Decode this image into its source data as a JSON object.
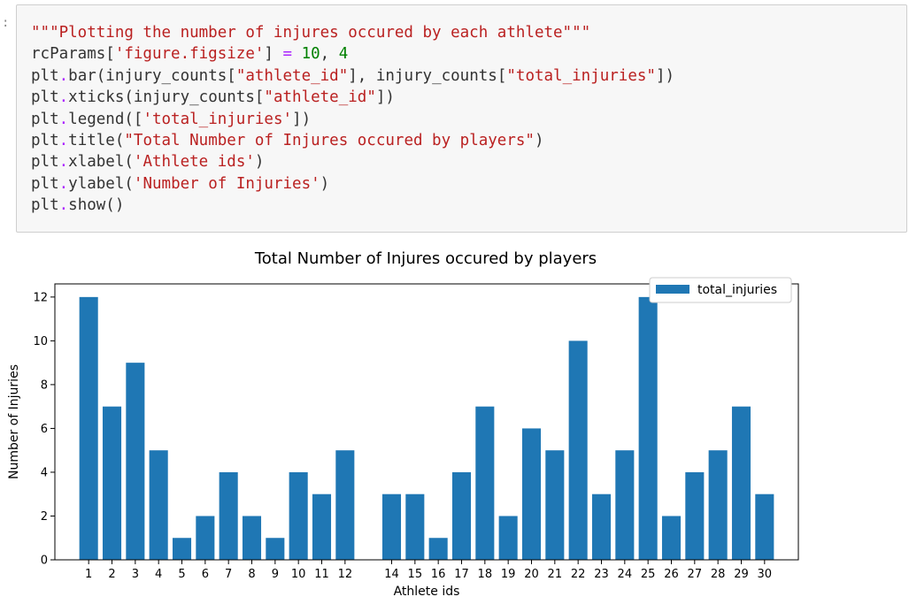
{
  "cell": {
    "prompt": ":",
    "code_lines": [
      [
        {
          "t": "\"\"\"Plotting the number of injures occured by each athlete\"\"\"",
          "c": "str"
        }
      ],
      [
        {
          "t": "rcParams[",
          "c": "default"
        },
        {
          "t": "'figure.figsize'",
          "c": "str"
        },
        {
          "t": "] ",
          "c": "default"
        },
        {
          "t": "=",
          "c": "op"
        },
        {
          "t": " ",
          "c": "default"
        },
        {
          "t": "10",
          "c": "num"
        },
        {
          "t": ", ",
          "c": "default"
        },
        {
          "t": "4",
          "c": "num"
        }
      ],
      [
        {
          "t": "plt",
          "c": "default"
        },
        {
          "t": ".",
          "c": "op"
        },
        {
          "t": "bar(injury_counts[",
          "c": "default"
        },
        {
          "t": "\"athlete_id\"",
          "c": "str"
        },
        {
          "t": "], injury_counts[",
          "c": "default"
        },
        {
          "t": "\"total_injuries\"",
          "c": "str"
        },
        {
          "t": "])",
          "c": "default"
        }
      ],
      [
        {
          "t": "plt",
          "c": "default"
        },
        {
          "t": ".",
          "c": "op"
        },
        {
          "t": "xticks(injury_counts[",
          "c": "default"
        },
        {
          "t": "\"athlete_id\"",
          "c": "str"
        },
        {
          "t": "])",
          "c": "default"
        }
      ],
      [
        {
          "t": "plt",
          "c": "default"
        },
        {
          "t": ".",
          "c": "op"
        },
        {
          "t": "legend([",
          "c": "default"
        },
        {
          "t": "'total_injuries'",
          "c": "str"
        },
        {
          "t": "])",
          "c": "default"
        }
      ],
      [
        {
          "t": "plt",
          "c": "default"
        },
        {
          "t": ".",
          "c": "op"
        },
        {
          "t": "title(",
          "c": "default"
        },
        {
          "t": "\"Total Number of Injures occured by players\"",
          "c": "str"
        },
        {
          "t": ")",
          "c": "default"
        }
      ],
      [
        {
          "t": "plt",
          "c": "default"
        },
        {
          "t": ".",
          "c": "op"
        },
        {
          "t": "xlabel(",
          "c": "default"
        },
        {
          "t": "'Athlete ids'",
          "c": "str"
        },
        {
          "t": ")",
          "c": "default"
        }
      ],
      [
        {
          "t": "plt",
          "c": "default"
        },
        {
          "t": ".",
          "c": "op"
        },
        {
          "t": "ylabel(",
          "c": "default"
        },
        {
          "t": "'Number of Injuries'",
          "c": "str"
        },
        {
          "t": ")",
          "c": "default"
        }
      ],
      [
        {
          "t": "plt",
          "c": "default"
        },
        {
          "t": ".",
          "c": "op"
        },
        {
          "t": "show()",
          "c": "default"
        }
      ]
    ]
  },
  "colors": {
    "bar": "#1f77b4",
    "string": "#ba2121",
    "number": "#008000",
    "operator": "#aa22ff"
  },
  "chart_data": {
    "type": "bar",
    "title": "Total Number of Injures occured by players",
    "xlabel": "Athlete ids",
    "ylabel": "Number of Injuries",
    "categories": [
      1,
      2,
      3,
      4,
      5,
      6,
      7,
      8,
      9,
      10,
      11,
      12,
      14,
      15,
      16,
      17,
      18,
      19,
      20,
      21,
      22,
      23,
      24,
      25,
      26,
      27,
      28,
      29,
      30
    ],
    "x": [
      1,
      2,
      3,
      4,
      5,
      6,
      7,
      8,
      9,
      10,
      11,
      12,
      14,
      15,
      16,
      17,
      18,
      19,
      20,
      21,
      22,
      23,
      24,
      25,
      26,
      27,
      28,
      29,
      30
    ],
    "values": [
      12,
      7,
      9,
      5,
      1,
      2,
      4,
      2,
      1,
      4,
      3,
      5,
      3,
      3,
      1,
      4,
      7,
      2,
      6,
      5,
      10,
      3,
      5,
      12,
      2,
      4,
      5,
      7,
      3
    ],
    "xlim": [
      -0.45,
      31.45
    ],
    "ylim": [
      0,
      12.6
    ],
    "yticks": [
      0,
      2,
      4,
      6,
      8,
      10,
      12
    ],
    "grid": false,
    "legend": {
      "entries": [
        "total_injuries"
      ],
      "placement": "upper right"
    }
  }
}
